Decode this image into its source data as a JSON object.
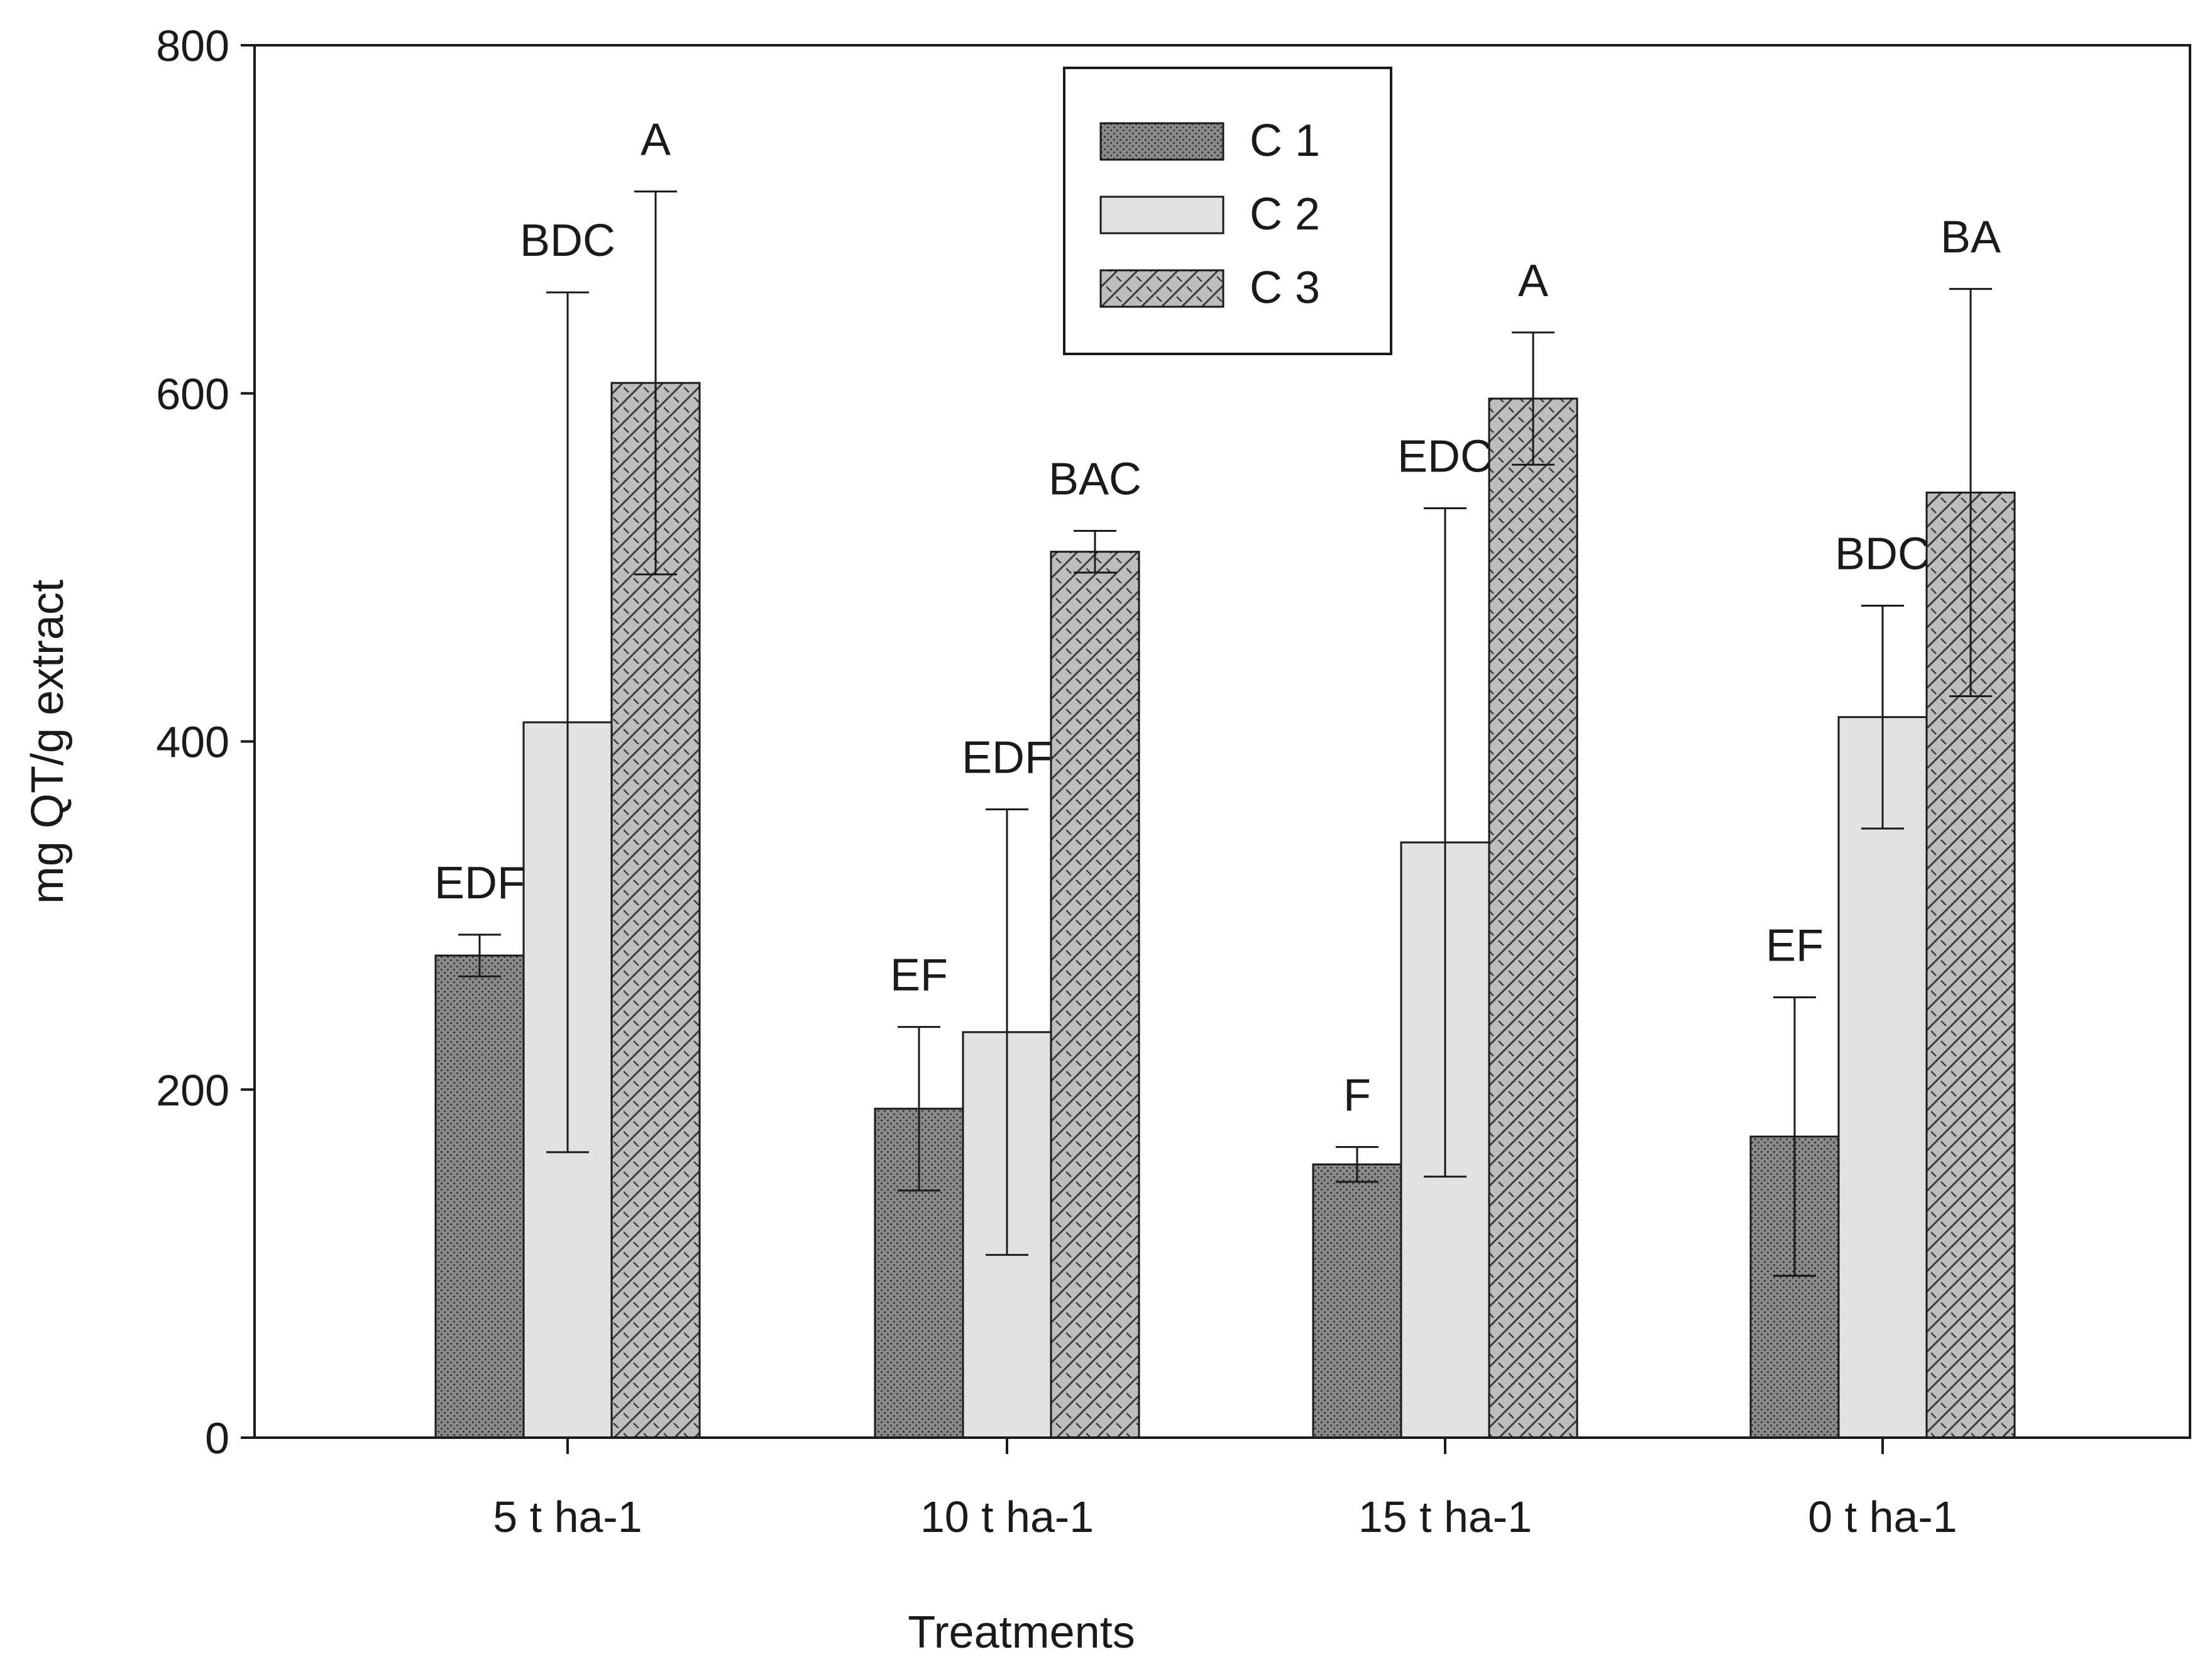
{
  "chart_data": {
    "type": "bar",
    "title": "",
    "xlabel": "Treatments",
    "ylabel": "mg QT/g extract",
    "ylim": [
      0,
      800
    ],
    "yticks": [
      "0",
      "200",
      "400",
      "600",
      "800"
    ],
    "categories": [
      "5 t ha-1",
      "10 t ha-1",
      "15 t ha-1",
      "0 t ha-1"
    ],
    "legend_position": "top-center",
    "series": [
      {
        "name": "C 1",
        "values": [
          277,
          189,
          157,
          173
        ],
        "errors": [
          12,
          47,
          10,
          80
        ],
        "labels": [
          "EDF",
          "EF",
          "F",
          "EF"
        ],
        "color": "#8a8a8a",
        "pattern": "dots"
      },
      {
        "name": "C 2",
        "values": [
          411,
          233,
          342,
          414
        ],
        "errors": [
          247,
          128,
          192,
          64
        ],
        "labels": [
          "BDC",
          "EDF",
          "EDC",
          "BDC"
        ],
        "color": "#e2e2e2",
        "pattern": "solid"
      },
      {
        "name": "C 3",
        "values": [
          606,
          509,
          597,
          543
        ],
        "errors": [
          110,
          12,
          38,
          117
        ],
        "labels": [
          "A",
          "BAC",
          "A",
          "BA"
        ],
        "color": "#b4b4b4",
        "pattern": "hatch"
      }
    ]
  }
}
